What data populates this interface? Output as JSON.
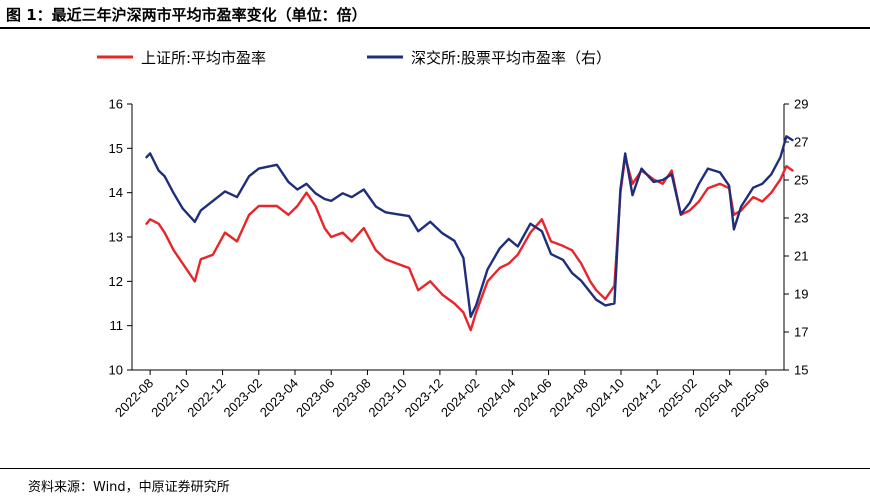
{
  "figure": {
    "title": "图 1：最近三年沪深两市平均市盈率变化（单位：倍）",
    "source": "资料来源：Wind，中原证券研究所"
  },
  "chart_data": {
    "type": "line",
    "title": "最近三年沪深两市平均市盈率变化（单位：倍）",
    "unit": "倍",
    "legend_position": "top",
    "x_range": [
      "2022-07",
      "2025-07"
    ],
    "x_tick_labels": [
      "2022-08",
      "2022-10",
      "2022-12",
      "2023-02",
      "2023-04",
      "2023-06",
      "2023-08",
      "2023-10",
      "2023-12",
      "2024-02",
      "2024-04",
      "2024-06",
      "2024-08",
      "2024-10",
      "2024-12",
      "2025-02",
      "2025-04",
      "2025-06"
    ],
    "left_axis": {
      "ylim": [
        10,
        16
      ],
      "ticks": [
        10,
        11,
        12,
        13,
        14,
        15,
        16
      ]
    },
    "right_axis": {
      "ylim": [
        15,
        29
      ],
      "ticks": [
        15,
        17,
        19,
        21,
        23,
        25,
        27,
        29
      ]
    },
    "series": [
      {
        "name": "上证所:平均市盈率",
        "axis": "left",
        "color": "#E8262A",
        "points": [
          [
            "2022-07-25",
            13.3
          ],
          [
            "2022-08-01",
            13.4
          ],
          [
            "2022-08-15",
            13.3
          ],
          [
            "2022-08-25",
            13.1
          ],
          [
            "2022-09-10",
            12.7
          ],
          [
            "2022-09-25",
            12.4
          ],
          [
            "2022-10-15",
            12.0
          ],
          [
            "2022-10-25",
            12.5
          ],
          [
            "2022-11-15",
            12.6
          ],
          [
            "2022-12-05",
            13.1
          ],
          [
            "2022-12-25",
            12.9
          ],
          [
            "2023-01-15",
            13.5
          ],
          [
            "2023-02-01",
            13.7
          ],
          [
            "2023-03-01",
            13.7
          ],
          [
            "2023-03-20",
            13.5
          ],
          [
            "2023-04-05",
            13.7
          ],
          [
            "2023-04-20",
            14.0
          ],
          [
            "2023-05-05",
            13.7
          ],
          [
            "2023-05-20",
            13.2
          ],
          [
            "2023-06-01",
            13.0
          ],
          [
            "2023-06-20",
            13.1
          ],
          [
            "2023-07-05",
            12.9
          ],
          [
            "2023-07-25",
            13.2
          ],
          [
            "2023-08-15",
            12.7
          ],
          [
            "2023-09-01",
            12.5
          ],
          [
            "2023-09-20",
            12.4
          ],
          [
            "2023-10-10",
            12.3
          ],
          [
            "2023-10-25",
            11.8
          ],
          [
            "2023-11-15",
            12.0
          ],
          [
            "2023-12-05",
            11.7
          ],
          [
            "2023-12-25",
            11.5
          ],
          [
            "2024-01-10",
            11.3
          ],
          [
            "2024-01-22",
            10.9
          ],
          [
            "2024-02-01",
            11.3
          ],
          [
            "2024-02-20",
            12.0
          ],
          [
            "2024-03-10",
            12.3
          ],
          [
            "2024-03-25",
            12.4
          ],
          [
            "2024-04-10",
            12.6
          ],
          [
            "2024-05-01",
            13.1
          ],
          [
            "2024-05-20",
            13.4
          ],
          [
            "2024-06-05",
            12.9
          ],
          [
            "2024-06-25",
            12.8
          ],
          [
            "2024-07-10",
            12.7
          ],
          [
            "2024-07-25",
            12.4
          ],
          [
            "2024-08-10",
            12.0
          ],
          [
            "2024-08-20",
            11.8
          ],
          [
            "2024-09-05",
            11.6
          ],
          [
            "2024-09-20",
            11.9
          ],
          [
            "2024-09-30",
            14.0
          ],
          [
            "2024-10-08",
            14.8
          ],
          [
            "2024-10-20",
            14.2
          ],
          [
            "2024-11-05",
            14.5
          ],
          [
            "2024-11-25",
            14.3
          ],
          [
            "2024-12-10",
            14.2
          ],
          [
            "2024-12-25",
            14.5
          ],
          [
            "2025-01-10",
            13.5
          ],
          [
            "2025-01-25",
            13.6
          ],
          [
            "2025-02-10",
            13.8
          ],
          [
            "2025-02-25",
            14.1
          ],
          [
            "2025-03-15",
            14.2
          ],
          [
            "2025-03-30",
            14.1
          ],
          [
            "2025-04-08",
            13.5
          ],
          [
            "2025-04-20",
            13.6
          ],
          [
            "2025-05-10",
            13.9
          ],
          [
            "2025-05-25",
            13.8
          ],
          [
            "2025-06-10",
            14.0
          ],
          [
            "2025-06-25",
            14.3
          ],
          [
            "2025-07-05",
            14.6
          ],
          [
            "2025-07-15",
            14.5
          ]
        ]
      },
      {
        "name": "深交所:股票平均市盈率（右）",
        "axis": "right",
        "color": "#1F2E7A",
        "points": [
          [
            "2022-07-25",
            26.2
          ],
          [
            "2022-08-01",
            26.4
          ],
          [
            "2022-08-15",
            25.5
          ],
          [
            "2022-08-25",
            25.2
          ],
          [
            "2022-09-10",
            24.3
          ],
          [
            "2022-09-25",
            23.5
          ],
          [
            "2022-10-15",
            22.8
          ],
          [
            "2022-10-25",
            23.4
          ],
          [
            "2022-11-15",
            23.9
          ],
          [
            "2022-12-05",
            24.4
          ],
          [
            "2022-12-25",
            24.1
          ],
          [
            "2023-01-15",
            25.2
          ],
          [
            "2023-02-01",
            25.6
          ],
          [
            "2023-03-01",
            25.8
          ],
          [
            "2023-03-20",
            24.9
          ],
          [
            "2023-04-05",
            24.5
          ],
          [
            "2023-04-20",
            24.8
          ],
          [
            "2023-05-05",
            24.3
          ],
          [
            "2023-05-20",
            24.0
          ],
          [
            "2023-06-01",
            23.9
          ],
          [
            "2023-06-20",
            24.3
          ],
          [
            "2023-07-05",
            24.1
          ],
          [
            "2023-07-25",
            24.5
          ],
          [
            "2023-08-15",
            23.6
          ],
          [
            "2023-09-01",
            23.3
          ],
          [
            "2023-09-20",
            23.2
          ],
          [
            "2023-10-10",
            23.1
          ],
          [
            "2023-10-25",
            22.3
          ],
          [
            "2023-11-15",
            22.8
          ],
          [
            "2023-12-05",
            22.2
          ],
          [
            "2023-12-25",
            21.8
          ],
          [
            "2024-01-10",
            20.9
          ],
          [
            "2024-01-22",
            17.8
          ],
          [
            "2024-02-01",
            18.4
          ],
          [
            "2024-02-20",
            20.3
          ],
          [
            "2024-03-10",
            21.4
          ],
          [
            "2024-03-25",
            21.9
          ],
          [
            "2024-04-10",
            21.5
          ],
          [
            "2024-05-01",
            22.7
          ],
          [
            "2024-05-20",
            22.3
          ],
          [
            "2024-06-05",
            21.1
          ],
          [
            "2024-06-25",
            20.8
          ],
          [
            "2024-07-10",
            20.1
          ],
          [
            "2024-07-25",
            19.7
          ],
          [
            "2024-08-10",
            19.1
          ],
          [
            "2024-08-20",
            18.7
          ],
          [
            "2024-09-05",
            18.4
          ],
          [
            "2024-09-20",
            18.5
          ],
          [
            "2024-09-30",
            24.5
          ],
          [
            "2024-10-08",
            26.4
          ],
          [
            "2024-10-20",
            24.2
          ],
          [
            "2024-11-05",
            25.6
          ],
          [
            "2024-11-25",
            24.9
          ],
          [
            "2024-12-10",
            25.0
          ],
          [
            "2024-12-25",
            25.3
          ],
          [
            "2025-01-10",
            23.2
          ],
          [
            "2025-01-25",
            23.8
          ],
          [
            "2025-02-10",
            24.8
          ],
          [
            "2025-02-25",
            25.6
          ],
          [
            "2025-03-15",
            25.4
          ],
          [
            "2025-03-30",
            24.7
          ],
          [
            "2025-04-08",
            22.4
          ],
          [
            "2025-04-20",
            23.6
          ],
          [
            "2025-05-10",
            24.6
          ],
          [
            "2025-05-25",
            24.8
          ],
          [
            "2025-06-10",
            25.3
          ],
          [
            "2025-06-25",
            26.2
          ],
          [
            "2025-07-05",
            27.3
          ],
          [
            "2025-07-15",
            27.1
          ]
        ]
      }
    ]
  }
}
